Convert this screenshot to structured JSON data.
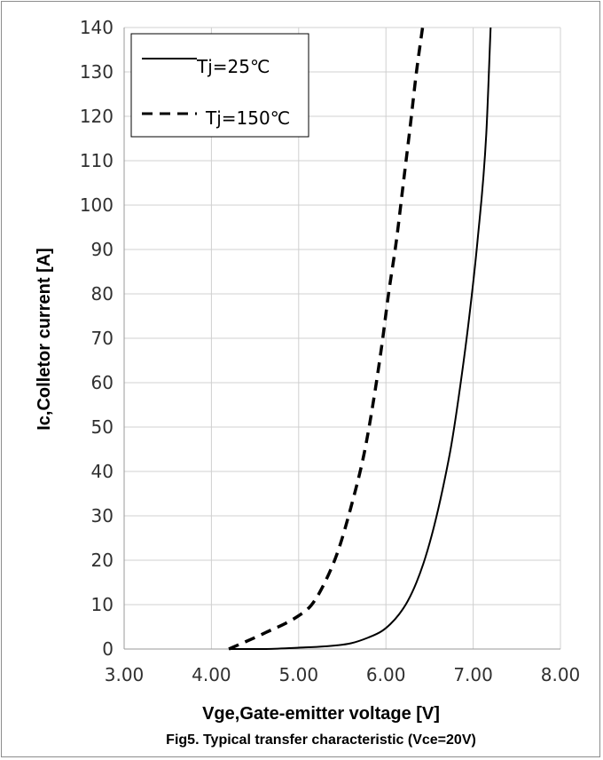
{
  "chart_data": {
    "type": "line",
    "title": "",
    "caption": "Fig5. Typical transfer characteristic (Vce=20V)",
    "xlabel": "Vge,Gate-emitter voltage [V]",
    "ylabel": "Ic,Colletor current [A]",
    "xlim": [
      3.0,
      8.0
    ],
    "ylim": [
      0,
      140
    ],
    "x_ticks": [
      3.0,
      4.0,
      5.0,
      6.0,
      7.0,
      8.0
    ],
    "x_tick_labels": [
      "3.00",
      "4.00",
      "5.00",
      "6.00",
      "7.00",
      "8.00"
    ],
    "y_ticks": [
      0,
      10,
      20,
      30,
      40,
      50,
      60,
      70,
      80,
      90,
      100,
      110,
      120,
      130,
      140
    ],
    "y_tick_labels": [
      "0",
      "10",
      "20",
      "30",
      "40",
      "50",
      "60",
      "70",
      "80",
      "90",
      "100",
      "110",
      "120",
      "130",
      "140"
    ],
    "grid": true,
    "legend_position": "top-left",
    "series": [
      {
        "name": "Tj=25℃",
        "style": "solid",
        "color": "#000000",
        "x": [
          4.2,
          4.6,
          5.0,
          5.3,
          5.6,
          5.8,
          5.95,
          6.05,
          6.15,
          6.25,
          6.35,
          6.45,
          6.55,
          6.65,
          6.75,
          6.85,
          6.95,
          7.05,
          7.15,
          7.2
        ],
        "y": [
          0,
          0,
          0.3,
          0.6,
          1.3,
          2.6,
          4.0,
          5.6,
          7.8,
          10.8,
          15.0,
          20.5,
          27.5,
          36.0,
          46.0,
          59.0,
          74.0,
          92.0,
          116.0,
          140.0
        ]
      },
      {
        "name": "Tj=150℃",
        "style": "dashed",
        "color": "#000000",
        "x": [
          4.2,
          4.6,
          5.0,
          5.15,
          5.3,
          5.45,
          5.6,
          5.75,
          5.85,
          5.95,
          6.03,
          6.12,
          6.2,
          6.28,
          6.35,
          6.42
        ],
        "y": [
          0,
          3.5,
          7.5,
          10.0,
          15.0,
          22.0,
          32.0,
          44.0,
          55.0,
          68.0,
          80.0,
          92.0,
          105.0,
          118.0,
          130.0,
          140.0
        ]
      }
    ]
  }
}
